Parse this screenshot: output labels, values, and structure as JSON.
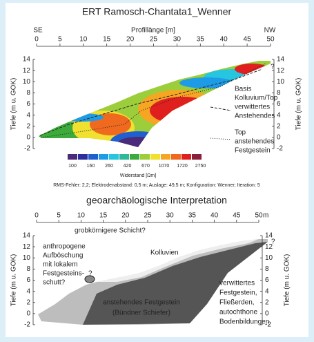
{
  "ert": {
    "title": "ERT Ramosch-Chantata1_Wenner",
    "x_label": "Profillänge [m]",
    "x_left": "SE",
    "x_right": "NW",
    "xlim": [
      0,
      50
    ],
    "xticks": [
      0,
      5,
      10,
      15,
      20,
      25,
      30,
      35,
      40,
      45,
      50
    ],
    "ylim": [
      -2,
      14
    ],
    "yticks": [
      -2,
      0,
      2,
      4,
      6,
      8,
      10,
      12,
      14
    ],
    "y_label": "Tiefe (m u. GOK)",
    "annotations": {
      "basis": [
        "Basis",
        "Kolluvium/Top",
        "verwittertes",
        "Anstehendes"
      ],
      "top": [
        "Top",
        "anstehendes",
        "Festgestein"
      ],
      "unknown": "?"
    },
    "colorbar": {
      "colors": [
        "#4b2a7a",
        "#2b2f9c",
        "#1f5fd0",
        "#1e9be6",
        "#27c6e0",
        "#2fb89a",
        "#3daa3c",
        "#9ccd3a",
        "#f0e030",
        "#f6a623",
        "#ef6a1e",
        "#e01f1f",
        "#8a1f3a"
      ],
      "labels": [
        100,
        160,
        260,
        420,
        670,
        1070,
        1720,
        2750
      ],
      "label": "Widerstand [Ωm]"
    },
    "footnote": "RMS-Fehler: 2,2; Elektrodenabstand: 0,5 m; Auslage: 49,5 m; Konfiguration: Wenner; Iteration: 5"
  },
  "interpretation": {
    "title": "geoarchäologische Interpretation",
    "xlim": [
      0,
      50
    ],
    "xticks": [
      0,
      5,
      10,
      15,
      20,
      25,
      30,
      35,
      40,
      45,
      50
    ],
    "x_unit": "m",
    "ylim": [
      -2,
      14
    ],
    "yticks": [
      -2,
      0,
      2,
      4,
      6,
      8,
      10,
      12,
      14
    ],
    "y_label": "Tiefe (m u. GOK)",
    "labels": {
      "coarse": "grobkörnigere Schicht?",
      "anthropogenic": [
        "anthropogene",
        "Aufböschung",
        "mit lokalem",
        "Festgesteins-",
        "schutt?"
      ],
      "unknown_left": "?",
      "kolluvien": "Kolluvien",
      "unknown_right": "?",
      "bedrock": [
        "anstehendes Festgestein",
        "(Bündner Schiefer)"
      ],
      "weathered": [
        "verwittertes",
        "Festgestein,",
        "Fließerden,",
        "autochthone",
        "Bodenbildungen"
      ]
    }
  }
}
